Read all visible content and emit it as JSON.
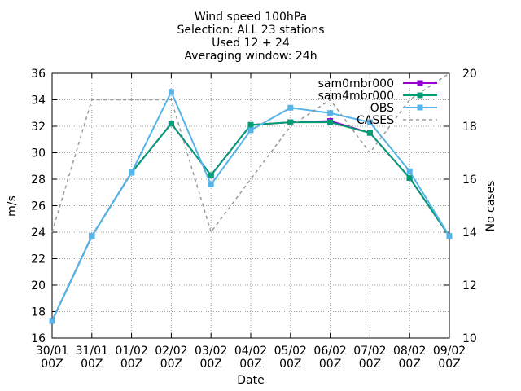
{
  "chart_data": {
    "type": "line",
    "title": [
      "Wind speed 100hPa",
      "Selection: ALL      23 stations",
      "Used 12 + 24",
      "Averaging window: 24h"
    ],
    "xlabel": "Date",
    "ylabel": "m/s",
    "y2label": "No cases",
    "categories": [
      [
        "30/01",
        "00Z"
      ],
      [
        "31/01",
        "00Z"
      ],
      [
        "01/02",
        "00Z"
      ],
      [
        "02/02",
        "00Z"
      ],
      [
        "03/02",
        "00Z"
      ],
      [
        "04/02",
        "00Z"
      ],
      [
        "05/02",
        "00Z"
      ],
      [
        "06/02",
        "00Z"
      ],
      [
        "07/02",
        "00Z"
      ],
      [
        "08/02",
        "00Z"
      ],
      [
        "09/02",
        "00Z"
      ]
    ],
    "ylim": [
      16,
      36
    ],
    "yticks": [
      16,
      18,
      20,
      22,
      24,
      26,
      28,
      30,
      32,
      34,
      36
    ],
    "y2lim": [
      10,
      20
    ],
    "y2ticks": [
      10,
      12,
      14,
      16,
      18,
      20
    ],
    "grid": true,
    "legend_position": "top-right",
    "series": [
      {
        "name": "sam0mbr000",
        "axis": "y",
        "color": "#9400d3",
        "style": "solid",
        "marker": "square",
        "values": [
          17.3,
          23.7,
          28.5,
          32.2,
          28.3,
          32.1,
          32.3,
          32.4,
          31.5,
          28.1,
          23.7
        ]
      },
      {
        "name": "sam4mbr000",
        "axis": "y",
        "color": "#009e73",
        "style": "solid",
        "marker": "square",
        "values": [
          17.3,
          23.7,
          28.5,
          32.2,
          28.3,
          32.1,
          32.3,
          32.3,
          31.5,
          28.1,
          23.7
        ]
      },
      {
        "name": "OBS",
        "axis": "y",
        "color": "#56b4e9",
        "style": "solid",
        "marker": "square",
        "values": [
          17.3,
          23.7,
          28.5,
          34.6,
          27.6,
          31.7,
          33.4,
          33.0,
          32.3,
          28.6,
          23.7
        ]
      },
      {
        "name": "CASES",
        "axis": "y2",
        "color": "#999999",
        "style": "dashed",
        "marker": "none",
        "values": [
          14,
          19,
          19,
          19,
          14,
          16,
          18,
          19,
          17,
          19,
          20
        ]
      }
    ]
  }
}
